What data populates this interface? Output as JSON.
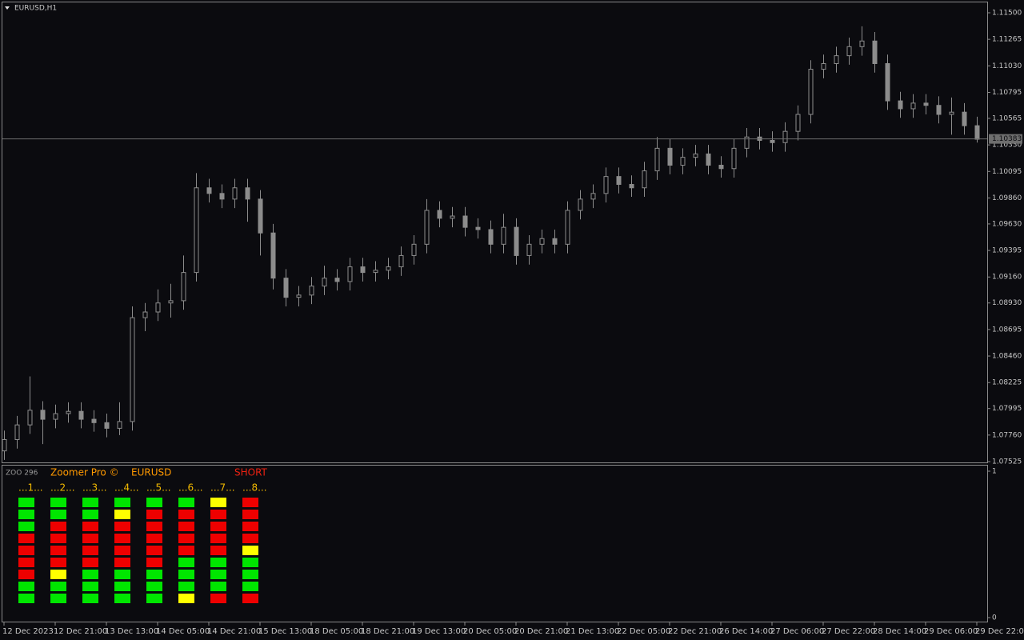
{
  "chart_data": {
    "type": "candlestick",
    "title": "EURUSD,H1",
    "categories": [
      "12 Dec 2023",
      null,
      null,
      null,
      "12 Dec 21:00",
      null,
      null,
      null,
      "13 Dec 13:00",
      null,
      null,
      null,
      "14 Dec 05:00",
      null,
      null,
      null,
      "14 Dec 21:00",
      null,
      null,
      null,
      "15 Dec 13:00",
      null,
      null,
      null,
      "18 Dec 05:00",
      null,
      null,
      null,
      "18 Dec 21:00",
      null,
      null,
      null,
      "19 Dec 13:00",
      null,
      null,
      null,
      "20 Dec 05:00",
      null,
      null,
      null,
      "20 Dec 21:00",
      null,
      null,
      null,
      "21 Dec 13:00",
      null,
      null,
      null,
      "22 Dec 05:00",
      null,
      null,
      null,
      "22 Dec 21:00",
      null,
      null,
      null,
      "26 Dec 14:00",
      null,
      null,
      null,
      "27 Dec 06:00",
      null,
      null,
      null,
      "27 Dec 22:00",
      null,
      null,
      null,
      "28 Dec 14:00",
      null,
      null,
      null,
      "29 Dec 06:00",
      null,
      null,
      null,
      "29 Dec 22:00"
    ],
    "open": [
      1.0762,
      1.0772,
      1.0785,
      1.0798,
      1.079,
      1.0795,
      1.0797,
      1.079,
      1.0787,
      1.0782,
      1.0788,
      1.088,
      1.0885,
      1.0893,
      1.0895,
      1.092,
      1.0995,
      1.099,
      1.0985,
      1.0995,
      1.0985,
      1.0955,
      1.0915,
      1.0898,
      1.09,
      1.0908,
      1.0915,
      1.0912,
      1.0925,
      1.092,
      1.0922,
      1.0925,
      1.0935,
      1.0945,
      1.0975,
      1.0968,
      1.097,
      1.096,
      1.0958,
      1.0945,
      1.096,
      1.0935,
      1.0945,
      1.095,
      1.0945,
      1.0975,
      1.0985,
      1.099,
      1.1005,
      1.0998,
      1.0995,
      1.101,
      1.103,
      1.1015,
      1.1022,
      1.1025,
      1.1015,
      1.1012,
      1.103,
      1.104,
      1.1037,
      1.1035,
      1.1045,
      1.106,
      1.11,
      1.1105,
      1.1112,
      1.112,
      1.1125,
      1.1105,
      1.1072,
      1.1065,
      1.107,
      1.1068,
      1.106,
      1.1062,
      1.105
    ],
    "high": [
      1.078,
      1.0793,
      1.0828,
      1.0806,
      1.0803,
      1.0805,
      1.0805,
      1.0798,
      1.0795,
      1.0805,
      1.089,
      1.0893,
      1.0905,
      1.091,
      1.0935,
      1.1008,
      1.1003,
      1.0998,
      1.1003,
      1.1003,
      1.0993,
      1.0963,
      1.0923,
      1.0908,
      1.0916,
      1.0926,
      1.0923,
      1.0933,
      1.0933,
      1.093,
      1.0933,
      1.0943,
      1.0953,
      1.0985,
      1.0983,
      1.0978,
      1.0978,
      1.0968,
      1.0966,
      1.0972,
      1.0968,
      1.0953,
      1.0958,
      1.0958,
      1.0983,
      1.0993,
      1.0998,
      1.1013,
      1.1013,
      1.1006,
      1.1018,
      1.104,
      1.1038,
      1.103,
      1.1033,
      1.1033,
      1.1023,
      1.1038,
      1.1048,
      1.1048,
      1.1045,
      1.1053,
      1.1068,
      1.1108,
      1.1113,
      1.112,
      1.1128,
      1.1138,
      1.1133,
      1.1113,
      1.108,
      1.1078,
      1.1078,
      1.1076,
      1.1075,
      1.107,
      1.1058
    ],
    "low": [
      1.0754,
      1.0764,
      1.0777,
      1.0768,
      1.0782,
      1.0787,
      1.0782,
      1.0779,
      1.0774,
      1.0776,
      1.078,
      1.0868,
      1.0877,
      1.088,
      1.0887,
      1.0912,
      1.0982,
      1.0977,
      1.0977,
      1.0965,
      1.0935,
      1.0905,
      1.089,
      1.089,
      1.0892,
      1.09,
      1.0904,
      1.0904,
      1.0912,
      1.0912,
      1.0914,
      1.0917,
      1.0927,
      1.0937,
      1.096,
      1.096,
      1.0952,
      1.095,
      1.0937,
      1.0937,
      1.0927,
      1.0927,
      1.0937,
      1.0937,
      1.0937,
      1.0967,
      1.0977,
      1.0982,
      1.099,
      1.0987,
      1.0987,
      1.1002,
      1.1007,
      1.1007,
      1.1014,
      1.1007,
      1.1004,
      1.1004,
      1.1022,
      1.1029,
      1.1027,
      1.1027,
      1.1037,
      1.1052,
      1.1092,
      1.1097,
      1.1104,
      1.1112,
      1.1097,
      1.1064,
      1.1057,
      1.1057,
      1.106,
      1.1052,
      1.1042,
      1.1042,
      1.1035
    ],
    "close": [
      1.0772,
      1.0785,
      1.0798,
      1.079,
      1.0795,
      1.0797,
      1.079,
      1.0787,
      1.0782,
      1.0788,
      1.088,
      1.0885,
      1.0893,
      1.0895,
      1.092,
      1.0995,
      1.099,
      1.0985,
      1.0995,
      1.0985,
      1.0955,
      1.0915,
      1.0898,
      1.09,
      1.0908,
      1.0915,
      1.0912,
      1.0925,
      1.092,
      1.0922,
      1.0925,
      1.0935,
      1.0945,
      1.0975,
      1.0968,
      1.097,
      1.096,
      1.0958,
      1.0945,
      1.096,
      1.0935,
      1.0945,
      1.095,
      1.0945,
      1.0975,
      1.0985,
      1.099,
      1.1005,
      1.0998,
      1.0995,
      1.101,
      1.103,
      1.1015,
      1.1022,
      1.1025,
      1.1015,
      1.1012,
      1.103,
      1.104,
      1.1037,
      1.1035,
      1.1045,
      1.106,
      1.11,
      1.1105,
      1.1112,
      1.112,
      1.1125,
      1.1105,
      1.1072,
      1.1065,
      1.107,
      1.1068,
      1.106,
      1.1062,
      1.105,
      1.1038
    ],
    "color": "#8c8c8c",
    "ylim": [
      1.07518,
      1.11592
    ],
    "yticks": [
      {
        "value": 1.115,
        "label": "1.11500"
      },
      {
        "value": 1.11265,
        "label": "1.11265"
      },
      {
        "value": 1.1103,
        "label": "1.11030"
      },
      {
        "value": 1.10795,
        "label": "1.10795"
      },
      {
        "value": 1.10565,
        "label": "1.10565"
      },
      {
        "value": 1.1033,
        "label": "1.10330"
      },
      {
        "value": 1.10095,
        "label": "1.10095"
      },
      {
        "value": 1.0986,
        "label": "1.09860"
      },
      {
        "value": 1.0963,
        "label": "1.09630"
      },
      {
        "value": 1.09395,
        "label": "1.09395"
      },
      {
        "value": 1.0916,
        "label": "1.09160"
      },
      {
        "value": 1.0893,
        "label": "1.08930"
      },
      {
        "value": 1.08695,
        "label": "1.08695"
      },
      {
        "value": 1.0846,
        "label": "1.08460"
      },
      {
        "value": 1.08225,
        "label": "1.08225"
      },
      {
        "value": 1.07995,
        "label": "1.07995"
      },
      {
        "value": 1.0776,
        "label": "1.07760"
      },
      {
        "value": 1.07525,
        "label": "1.07525"
      }
    ],
    "last_price": 1.10383
  },
  "indicator": {
    "short_name": "ZOO 296",
    "name": "Zoomer Pro ©",
    "symbol": "EURUSD",
    "signal": "SHORT",
    "ylim": [
      0,
      1
    ],
    "yticks": [
      0,
      1
    ],
    "columns": [
      {
        "label": "...1...",
        "cells": [
          "green",
          "green",
          "green",
          "red",
          "red",
          "red",
          "red",
          "green",
          "green"
        ]
      },
      {
        "label": "...2...",
        "cells": [
          "green",
          "green",
          "red",
          "red",
          "red",
          "red",
          "yellow",
          "green",
          "green"
        ]
      },
      {
        "label": "...3...",
        "cells": [
          "green",
          "green",
          "red",
          "red",
          "red",
          "red",
          "green",
          "green",
          "green"
        ]
      },
      {
        "label": "...4...",
        "cells": [
          "green",
          "yellow",
          "red",
          "red",
          "red",
          "red",
          "green",
          "green",
          "green"
        ]
      },
      {
        "label": "...5...",
        "cells": [
          "green",
          "red",
          "red",
          "red",
          "red",
          "red",
          "green",
          "green",
          "green"
        ]
      },
      {
        "label": "...6...",
        "cells": [
          "green",
          "red",
          "red",
          "red",
          "red",
          "green",
          "green",
          "green",
          "yellow"
        ]
      },
      {
        "label": "...7...",
        "cells": [
          "yellow",
          "red",
          "red",
          "red",
          "red",
          "green",
          "green",
          "green",
          "red"
        ]
      },
      {
        "label": "...8...",
        "cells": [
          "red",
          "red",
          "red",
          "red",
          "yellow",
          "green",
          "green",
          "green",
          "red"
        ]
      }
    ]
  }
}
